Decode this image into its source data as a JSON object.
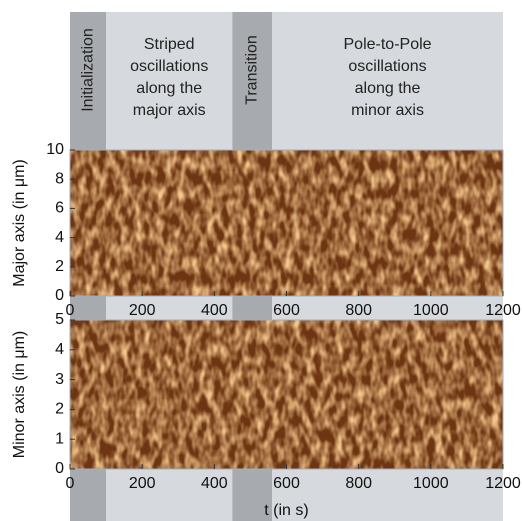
{
  "phases": [
    {
      "lines": [
        "Initialization"
      ],
      "start": 0,
      "end": 100,
      "color": "#a7aaae",
      "orientation": "vertical"
    },
    {
      "lines": [
        "Striped",
        "oscillations",
        "along the",
        "major axis"
      ],
      "start": 100,
      "end": 450,
      "color": "#d6d9dd",
      "orientation": "horizontal"
    },
    {
      "lines": [
        "Transition"
      ],
      "start": 450,
      "end": 560,
      "color": "#a7aaae",
      "orientation": "vertical"
    },
    {
      "lines": [
        "Pole-to-Pole",
        "oscillations",
        "along the",
        "minor axis"
      ],
      "start": 560,
      "end": 1200,
      "color": "#d6d9dd",
      "orientation": "horizontal"
    }
  ],
  "chart_data": [
    {
      "type": "heatmap",
      "ylabel": "Major axis (in μm)",
      "xlim": [
        0,
        1200
      ],
      "xticks": [
        0,
        200,
        400,
        600,
        800,
        1000,
        1200
      ],
      "ylim": [
        0,
        10
      ],
      "yticks": [
        0,
        2,
        4,
        6,
        8,
        10
      ]
    },
    {
      "type": "heatmap",
      "ylabel": "Minor axis (in μm)",
      "xlabel": "t (in s)",
      "xlim": [
        0,
        1200
      ],
      "xticks": [
        0,
        200,
        400,
        600,
        800,
        1000,
        1200
      ],
      "ylim": [
        0,
        5
      ],
      "yticks": [
        0,
        1,
        2,
        3,
        4,
        5
      ]
    }
  ]
}
